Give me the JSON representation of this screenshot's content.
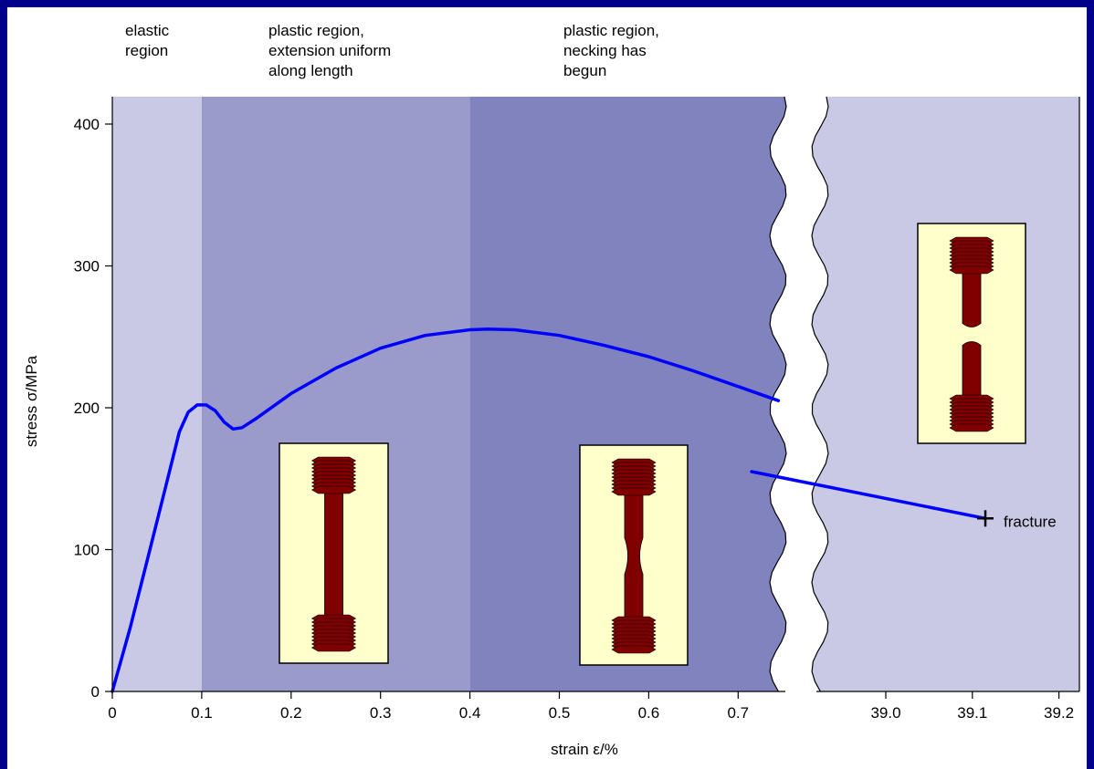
{
  "chart_data": {
    "type": "line",
    "xlabel": "strain ε/%",
    "ylabel": "stress σ/MPa",
    "ylim": [
      0,
      420
    ],
    "xlim_left": [
      0,
      0.755
    ],
    "xlim_right": [
      38.84,
      39.24
    ],
    "x_ticks_left": [
      "0",
      "0.1",
      "0.2",
      "0.3",
      "0.4",
      "0.5",
      "0.6",
      "0.7"
    ],
    "x_ticks_right": [
      "39.0",
      "39.1",
      "39.2"
    ],
    "y_ticks": [
      "0",
      "100",
      "200",
      "300",
      "400"
    ],
    "regions": [
      {
        "label_lines": [
          "elastic",
          "region"
        ],
        "x_from": 0,
        "x_to": 0.1,
        "color": "#c9c9e6"
      },
      {
        "label_lines": [
          "plastic region,",
          "extension uniform",
          "along length"
        ],
        "x_from": 0.1,
        "x_to": 0.4,
        "color": "#9a9bcb"
      },
      {
        "label_lines": [
          "plastic region,",
          "necking has",
          "begun"
        ],
        "x_from": 0.4,
        "x_to": 0.755,
        "color": "#8183bf"
      }
    ],
    "right_panel_color": "#c9c9e6",
    "series": [
      {
        "color": "#0000ff",
        "points_left": [
          [
            0,
            0
          ],
          [
            0.02,
            45
          ],
          [
            0.04,
            95
          ],
          [
            0.06,
            145
          ],
          [
            0.075,
            183
          ],
          [
            0.085,
            197
          ],
          [
            0.095,
            202
          ],
          [
            0.105,
            202
          ],
          [
            0.115,
            198
          ],
          [
            0.125,
            190
          ],
          [
            0.135,
            185
          ],
          [
            0.145,
            186
          ],
          [
            0.16,
            192
          ],
          [
            0.2,
            210
          ],
          [
            0.25,
            228
          ],
          [
            0.3,
            242
          ],
          [
            0.35,
            251
          ],
          [
            0.4,
            255
          ],
          [
            0.42,
            255.5
          ],
          [
            0.45,
            255
          ],
          [
            0.5,
            251
          ],
          [
            0.55,
            244
          ],
          [
            0.6,
            236
          ],
          [
            0.65,
            226
          ],
          [
            0.7,
            215
          ],
          [
            0.745,
            205
          ]
        ],
        "points_right": [
          [
            38.845,
            155
          ],
          [
            39.115,
            122
          ]
        ]
      }
    ],
    "annotations": [
      {
        "text": "fracture",
        "x": 39.115,
        "y": 122,
        "marker": "+"
      }
    ],
    "specimens": [
      {
        "state": "uniform",
        "fill": "#ffffcc",
        "bar_color": "#800000"
      },
      {
        "state": "necked",
        "fill": "#ffffcc",
        "bar_color": "#800000"
      },
      {
        "state": "fractured",
        "fill": "#ffffcc",
        "bar_color": "#800000"
      }
    ]
  }
}
